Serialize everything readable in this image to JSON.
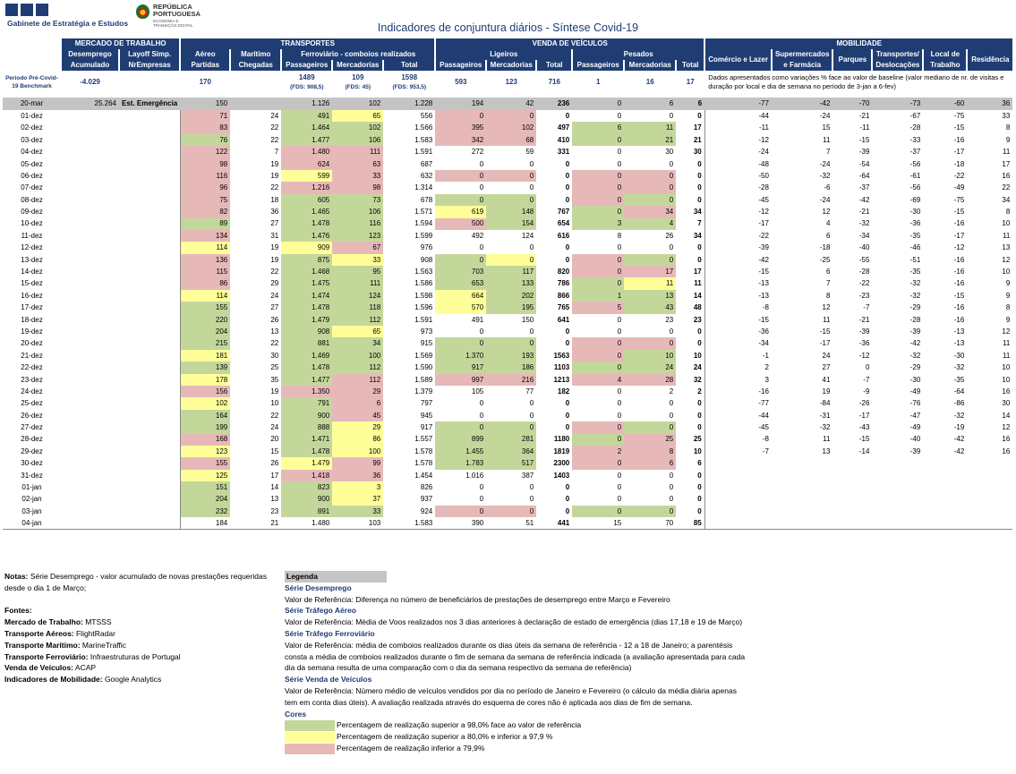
{
  "logo": {
    "text": "Gabinete de Estratégia e Estudos"
  },
  "republica": {
    "line1": "REPÚBLICA",
    "line2": "PORTUGUESA",
    "line3": "ECONOMIA E",
    "line4": "TRANSIÇÃO DIGITAL"
  },
  "title": "Indicadores de conjuntura diários - Síntese Covid-19",
  "headers": {
    "mercado": "MERCADO DE TRABALHO",
    "transportes": "TRANSPORTES",
    "venda": "VENDA DE VEÍCULOS",
    "mobilidade": "MOBILIDADE",
    "desemprego": "Desemprego",
    "layoff": "Layoff Simp.",
    "aereo": "Aéreo",
    "maritimo": "Marítimo",
    "ferroviario": "Ferroviário - comboios realizados",
    "ligeiros": "Ligeiros",
    "pesados": "Pesados",
    "comercio": "Comércio e Lazer",
    "supermercados": "Supermercados e Farmácia",
    "parques": "Parques",
    "transportesDesl": "Transportes/ Deslocações",
    "localTrabalho": "Local de Trabalho",
    "residencia": "Residência",
    "acumulado": "Acumulado",
    "nrEmpresas": "NrEmpresas",
    "partidas": "Partidas",
    "chegadas": "Chegadas",
    "passageiros": "Passageiros",
    "mercadorias": "Mercadorias",
    "total": "Total"
  },
  "benchmark": {
    "label": "Período Pré-Covid-19 Benchmark",
    "desemprego": "-4.029",
    "aereo": "170",
    "ferroPass": "1489",
    "ferroPassSub": "(FDS: 908,5)",
    "ferroMerc": "109",
    "ferroMercSub": "(FDS: 45)",
    "ferroTotal": "1598",
    "ferroTotalSub": "(FDS: 953,5)",
    "ligPass": "593",
    "ligMerc": "123",
    "ligTotal": "716",
    "pesPass": "1",
    "pesMerc": "16",
    "pesTotal": "17",
    "note": "Dados apresentados como variações % face ao valor de baseline (valor mediano de nr. de visitas e duração por local e dia de semana no período de 3-jan a 6-fev)"
  },
  "reference": [
    "20-mar",
    "25.264",
    "Est. Emergência",
    "150",
    "",
    "1.126",
    "102",
    "1.228",
    "194",
    "42",
    "236",
    "0",
    "6",
    "6",
    "-77",
    "-42",
    "-70",
    "-73",
    "-60",
    "36"
  ],
  "rows": [
    [
      "01-dez",
      "",
      "",
      "71",
      "24",
      "491",
      "65",
      "556",
      "0",
      "0",
      "0",
      "0",
      "0",
      "0",
      "-44",
      "-24",
      "-21",
      "-67",
      "-75",
      "33"
    ],
    [
      "02-dez",
      "",
      "",
      "83",
      "22",
      "1.464",
      "102",
      "1.566",
      "395",
      "102",
      "497",
      "6",
      "11",
      "17",
      "-11",
      "15",
      "-11",
      "-28",
      "-15",
      "8"
    ],
    [
      "03-dez",
      "",
      "",
      "76",
      "22",
      "1.477",
      "106",
      "1.583",
      "342",
      "68",
      "410",
      "0",
      "21",
      "21",
      "-12",
      "11",
      "-15",
      "-33",
      "-16",
      "9"
    ],
    [
      "04-dez",
      "",
      "",
      "122",
      "7",
      "1.480",
      "111",
      "1.591",
      "272",
      "59",
      "331",
      "0",
      "30",
      "30",
      "-24",
      "7",
      "-39",
      "-37",
      "-17",
      "11"
    ],
    [
      "05-dez",
      "",
      "",
      "98",
      "19",
      "624",
      "63",
      "687",
      "0",
      "0",
      "0",
      "0",
      "0",
      "0",
      "-48",
      "-24",
      "-54",
      "-56",
      "-18",
      "17"
    ],
    [
      "06-dez",
      "",
      "",
      "116",
      "19",
      "599",
      "33",
      "632",
      "0",
      "0",
      "0",
      "0",
      "0",
      "0",
      "-50",
      "-32",
      "-64",
      "-61",
      "-22",
      "16"
    ],
    [
      "07-dez",
      "",
      "",
      "96",
      "22",
      "1.216",
      "98",
      "1.314",
      "0",
      "0",
      "0",
      "0",
      "0",
      "0",
      "-28",
      "-6",
      "-37",
      "-56",
      "-49",
      "22"
    ],
    [
      "08-dez",
      "",
      "",
      "75",
      "18",
      "605",
      "73",
      "678",
      "0",
      "0",
      "0",
      "0",
      "0",
      "0",
      "-45",
      "-24",
      "-42",
      "-69",
      "-75",
      "34"
    ],
    [
      "09-dez",
      "",
      "",
      "82",
      "36",
      "1.465",
      "106",
      "1.571",
      "619",
      "148",
      "767",
      "0",
      "34",
      "34",
      "-12",
      "12",
      "-21",
      "-30",
      "-15",
      "8"
    ],
    [
      "10-dez",
      "",
      "",
      "89",
      "27",
      "1.478",
      "116",
      "1.594",
      "500",
      "154",
      "654",
      "3",
      "4",
      "7",
      "-17",
      "4",
      "-32",
      "-36",
      "-16",
      "10"
    ],
    [
      "11-dez",
      "",
      "",
      "134",
      "31",
      "1.476",
      "123",
      "1.599",
      "492",
      "124",
      "616",
      "8",
      "26",
      "34",
      "-22",
      "6",
      "-34",
      "-35",
      "-17",
      "11"
    ],
    [
      "12-dez",
      "",
      "",
      "114",
      "19",
      "909",
      "67",
      "976",
      "0",
      "0",
      "0",
      "0",
      "0",
      "0",
      "-39",
      "-18",
      "-40",
      "-46",
      "-12",
      "13"
    ],
    [
      "13-dez",
      "",
      "",
      "136",
      "19",
      "875",
      "33",
      "908",
      "0",
      "0",
      "0",
      "0",
      "0",
      "0",
      "-42",
      "-25",
      "-55",
      "-51",
      "-16",
      "12"
    ],
    [
      "14-dez",
      "",
      "",
      "115",
      "22",
      "1.468",
      "95",
      "1.563",
      "703",
      "117",
      "820",
      "0",
      "17",
      "17",
      "-15",
      "6",
      "-28",
      "-35",
      "-16",
      "10"
    ],
    [
      "15-dez",
      "",
      "",
      "86",
      "29",
      "1.475",
      "111",
      "1.586",
      "653",
      "133",
      "786",
      "0",
      "11",
      "11",
      "-13",
      "7",
      "-22",
      "-32",
      "-16",
      "9"
    ],
    [
      "16-dez",
      "",
      "",
      "114",
      "24",
      "1.474",
      "124",
      "1.598",
      "664",
      "202",
      "866",
      "1",
      "13",
      "14",
      "-13",
      "8",
      "-23",
      "-32",
      "-15",
      "9"
    ],
    [
      "17-dez",
      "",
      "",
      "155",
      "27",
      "1.478",
      "118",
      "1.596",
      "570",
      "195",
      "765",
      "5",
      "43",
      "48",
      "-8",
      "12",
      "-7",
      "-29",
      "-16",
      "8"
    ],
    [
      "18-dez",
      "",
      "",
      "220",
      "26",
      "1.479",
      "112",
      "1.591",
      "491",
      "150",
      "641",
      "0",
      "23",
      "23",
      "-15",
      "11",
      "-21",
      "-28",
      "-16",
      "9"
    ],
    [
      "19-dez",
      "",
      "",
      "204",
      "13",
      "908",
      "65",
      "973",
      "0",
      "0",
      "0",
      "0",
      "0",
      "0",
      "-36",
      "-15",
      "-39",
      "-39",
      "-13",
      "12"
    ],
    [
      "20-dez",
      "",
      "",
      "215",
      "22",
      "881",
      "34",
      "915",
      "0",
      "0",
      "0",
      "0",
      "0",
      "0",
      "-34",
      "-17",
      "-36",
      "-42",
      "-13",
      "11"
    ],
    [
      "21-dez",
      "",
      "",
      "181",
      "30",
      "1.469",
      "100",
      "1.569",
      "1.370",
      "193",
      "1563",
      "0",
      "10",
      "10",
      "-1",
      "24",
      "-12",
      "-32",
      "-30",
      "11"
    ],
    [
      "22-dez",
      "",
      "",
      "139",
      "25",
      "1.478",
      "112",
      "1.590",
      "917",
      "186",
      "1103",
      "0",
      "24",
      "24",
      "2",
      "27",
      "0",
      "-29",
      "-32",
      "10"
    ],
    [
      "23-dez",
      "",
      "",
      "178",
      "35",
      "1.477",
      "112",
      "1.589",
      "997",
      "216",
      "1213",
      "4",
      "28",
      "32",
      "3",
      "41",
      "-7",
      "-30",
      "-35",
      "10"
    ],
    [
      "24-dez",
      "",
      "",
      "156",
      "19",
      "1.350",
      "29",
      "1.379",
      "105",
      "77",
      "182",
      "0",
      "2",
      "2",
      "-16",
      "19",
      "-9",
      "-49",
      "-64",
      "16"
    ],
    [
      "25-dez",
      "",
      "",
      "102",
      "10",
      "791",
      "6",
      "797",
      "0",
      "0",
      "0",
      "0",
      "0",
      "0",
      "-77",
      "-84",
      "-26",
      "-76",
      "-86",
      "30"
    ],
    [
      "26-dez",
      "",
      "",
      "164",
      "22",
      "900",
      "45",
      "945",
      "0",
      "0",
      "0",
      "0",
      "0",
      "0",
      "-44",
      "-31",
      "-17",
      "-47",
      "-32",
      "14"
    ],
    [
      "27-dez",
      "",
      "",
      "199",
      "24",
      "888",
      "29",
      "917",
      "0",
      "0",
      "0",
      "0",
      "0",
      "0",
      "-45",
      "-32",
      "-43",
      "-49",
      "-19",
      "12"
    ],
    [
      "28-dez",
      "",
      "",
      "168",
      "20",
      "1.471",
      "86",
      "1.557",
      "899",
      "281",
      "1180",
      "0",
      "25",
      "25",
      "-8",
      "11",
      "-15",
      "-40",
      "-42",
      "16"
    ],
    [
      "29-dez",
      "",
      "",
      "123",
      "15",
      "1.478",
      "100",
      "1.578",
      "1.455",
      "364",
      "1819",
      "2",
      "8",
      "10",
      "-7",
      "13",
      "-14",
      "-39",
      "-42",
      "16"
    ],
    [
      "30-dez",
      "",
      "",
      "155",
      "26",
      "1.479",
      "99",
      "1.578",
      "1.783",
      "517",
      "2300",
      "0",
      "6",
      "6",
      "",
      "",
      "",
      "",
      "",
      ""
    ],
    [
      "31-dez",
      "",
      "",
      "125",
      "17",
      "1.418",
      "36",
      "1.454",
      "1.016",
      "387",
      "1403",
      "0",
      "0",
      "0",
      "",
      "",
      "",
      "",
      "",
      ""
    ],
    [
      "01-jan",
      "",
      "",
      "151",
      "14",
      "823",
      "3",
      "826",
      "0",
      "0",
      "0",
      "0",
      "0",
      "0",
      "",
      "",
      "",
      "",
      "",
      ""
    ],
    [
      "02-jan",
      "",
      "",
      "204",
      "13",
      "900",
      "37",
      "937",
      "0",
      "0",
      "0",
      "0",
      "0",
      "0",
      "",
      "",
      "",
      "",
      "",
      ""
    ],
    [
      "03-jan",
      "",
      "",
      "232",
      "23",
      "891",
      "33",
      "924",
      "0",
      "0",
      "0",
      "0",
      "0",
      "0",
      "",
      "",
      "",
      "",
      "",
      ""
    ],
    [
      "04-jan",
      "",
      "",
      "184",
      "21",
      "1.480",
      "103",
      "1.583",
      "390",
      "51",
      "441",
      "15",
      "70",
      "85",
      "",
      "",
      "",
      "",
      "",
      ""
    ]
  ],
  "colors": [
    [
      "r",
      "",
      "",
      "",
      "r",
      "r",
      "",
      "",
      "",
      "",
      "",
      "",
      "",
      "",
      "",
      "",
      "",
      "",
      "",
      "",
      ""
    ],
    [
      "r",
      "",
      "g",
      "y",
      "",
      "r",
      "r",
      "r",
      "",
      ""
    ],
    [
      "r",
      "",
      "g",
      "g",
      "",
      "r",
      "r",
      "",
      "g",
      "g"
    ],
    [
      "g",
      "",
      "g",
      "g",
      "",
      "r",
      "r",
      "",
      "g",
      "g"
    ],
    [
      "r",
      "",
      "r",
      "r",
      "",
      "",
      "",
      "",
      "",
      ""
    ],
    [
      "r",
      "",
      "r",
      "r",
      "",
      "",
      "",
      "",
      "",
      ""
    ],
    [
      "r",
      "",
      "y",
      "r",
      "",
      "r",
      "r",
      "",
      "r",
      "r"
    ],
    [
      "r",
      "",
      "r",
      "r",
      "",
      "",
      "",
      "",
      "r",
      "r"
    ],
    [
      "r",
      "",
      "g",
      "g",
      "",
      "g",
      "g",
      "",
      "r",
      "g"
    ],
    [
      "r",
      "",
      "g",
      "g",
      "",
      "y",
      "g",
      "",
      "g",
      "r"
    ],
    [
      "g",
      "",
      "g",
      "g",
      "",
      "r",
      "g",
      "",
      "g",
      "g"
    ],
    [
      "r",
      "",
      "g",
      "g",
      "",
      "",
      "",
      "",
      "",
      ""
    ],
    [
      "y",
      "",
      "y",
      "r",
      "",
      "",
      "",
      "",
      "",
      ""
    ],
    [
      "r",
      "",
      "g",
      "y",
      "",
      "g",
      "y",
      "",
      "r",
      "g"
    ],
    [
      "r",
      "",
      "g",
      "g",
      "",
      "g",
      "g",
      "",
      "r",
      "r"
    ],
    [
      "r",
      "",
      "g",
      "g",
      "",
      "g",
      "g",
      "",
      "g",
      "y"
    ],
    [
      "y",
      "",
      "g",
      "g",
      "",
      "y",
      "g",
      "",
      "g",
      "g"
    ],
    [
      "g",
      "",
      "g",
      "g",
      "",
      "y",
      "g",
      "",
      "r",
      "g"
    ],
    [
      "g",
      "",
      "g",
      "g",
      "",
      "",
      "",
      "",
      "",
      ""
    ],
    [
      "g",
      "",
      "g",
      "y",
      "",
      "",
      "",
      "",
      "",
      ""
    ],
    [
      "g",
      "",
      "g",
      "g",
      "",
      "g",
      "g",
      "",
      "r",
      "r"
    ],
    [
      "y",
      "",
      "g",
      "g",
      "",
      "g",
      "g",
      "",
      "r",
      "g"
    ],
    [
      "g",
      "",
      "g",
      "g",
      "",
      "g",
      "g",
      "",
      "g",
      "g"
    ],
    [
      "y",
      "",
      "g",
      "r",
      "",
      "r",
      "r",
      "",
      "r",
      "r"
    ],
    [
      "r",
      "",
      "r",
      "r",
      "",
      "",
      "",
      "",
      "",
      ""
    ],
    [
      "y",
      "",
      "g",
      "r",
      "",
      "",
      "",
      "",
      "",
      ""
    ],
    [
      "g",
      "",
      "g",
      "r",
      "",
      "",
      "",
      "",
      "",
      ""
    ],
    [
      "g",
      "",
      "g",
      "y",
      "",
      "g",
      "g",
      "",
      "r",
      "g"
    ],
    [
      "r",
      "",
      "g",
      "y",
      "",
      "g",
      "g",
      "",
      "g",
      "r"
    ],
    [
      "y",
      "",
      "g",
      "y",
      "",
      "g",
      "g",
      "",
      "r",
      "r"
    ],
    [
      "r",
      "",
      "y",
      "r",
      "",
      "g",
      "g",
      "",
      "r",
      "r"
    ],
    [
      "y",
      "",
      "r",
      "r",
      "",
      "",
      "",
      "",
      "",
      ""
    ],
    [
      "g",
      "",
      "g",
      "y",
      "",
      "",
      "",
      "",
      "",
      ""
    ],
    [
      "g",
      "",
      "g",
      "y",
      "",
      "",
      "",
      "",
      "",
      ""
    ],
    [
      "g",
      "",
      "g",
      "g",
      "",
      "r",
      "r",
      "",
      "g",
      "g"
    ]
  ],
  "notes": {
    "notasLabel": "Notas:",
    "notasText": "Série Desemprego - valor acumulado de novas prestações requeridas desde o dia 1 de Março;",
    "fontes": "Fontes:",
    "src": [
      {
        "k": "Mercado de Trabalho:",
        "v": "MTSSS"
      },
      {
        "k": "Transporte Aéreos:",
        "v": "FlightRadar"
      },
      {
        "k": "Transporte Marítimo:",
        "v": "MarineTraffic"
      },
      {
        "k": "Transporte Ferroviário:",
        "v": "Infraestruturas de Portugal"
      },
      {
        "k": "Venda de Veículos:",
        "v": "ACAP"
      },
      {
        "k": "Indicadores de Mobilidade:",
        "v": "Google Analytics"
      }
    ]
  },
  "legend": {
    "title": "Legenda",
    "s1": "Série Desemprego",
    "t1": "Valor de Referência: Diferença no número de beneficiários de prestações de desemprego entre Março e Fevereiro",
    "s2": "Série Tráfego Aéreo",
    "t2": "Valor de Referência: Média de Voos realizados nos 3 dias anteriores à declaração de estado de emergência (dias 17,18 e 19 de Março)",
    "s3": "Série Tráfego Ferroviário",
    "t3": "Valor de Referência: média de comboios realizados durante os dias úteis da semana de referência - 12 a 18 de Janeiro; a parentésis consta a média de comboios realizados durante o fim de semana da semana de referência indicada (a avaliação apresentada para cada dia da semana resulta de uma comparação com o dia da semana respectivo da semana de referência)",
    "s4": "Série Venda de Veículos",
    "t4": "Valor de Referência: Número médio de veículos vendidos por dia no período de Janeiro e Fevereiro (o cálculo da média diária apenas tem em conta dias úteis). A avaliação realizada através do esquema de cores não é aplicada aos dias de fim de semana.",
    "s5": "Cores",
    "c1": "Percentagem de realização superior a 98,0% face ao valor de referência",
    "c2": "Percentagem de realização superior a 80,0% e inferior a 97,9 %",
    "c3": "Percentagem de realização inferior a 79,9%",
    "green": "#c4d79b",
    "yellow": "#ffff99",
    "red": "#e6b9b8"
  }
}
